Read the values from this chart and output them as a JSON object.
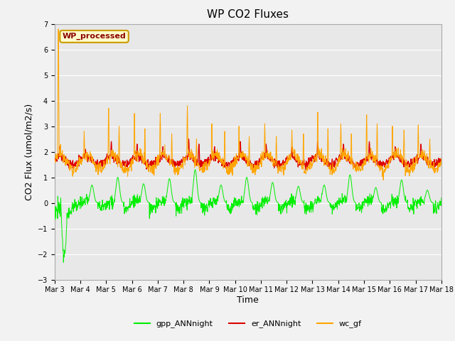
{
  "title": "WP CO2 Fluxes",
  "xlabel": "Time",
  "ylabel": "CO2 Flux (umol/m2/s)",
  "ylim": [
    -3.0,
    7.0
  ],
  "x_tick_labels": [
    "Mar 3",
    "Mar 4",
    "Mar 5",
    "Mar 6",
    "Mar 7",
    "Mar 8",
    "Mar 9",
    "Mar 10",
    "Mar 11",
    "Mar 12",
    "Mar 13",
    "Mar 14",
    "Mar 15",
    "Mar 16",
    "Mar 17",
    "Mar 18"
  ],
  "legend_labels": [
    "gpp_ANNnight",
    "er_ANNnight",
    "wc_gf"
  ],
  "legend_colors": [
    "#00ee00",
    "#dd0000",
    "#ffa500"
  ],
  "wp_label": "WP_processed",
  "wp_label_color": "#8b0000",
  "wp_box_facecolor": "#ffffcc",
  "wp_box_edgecolor": "#cc9900",
  "fig_facecolor": "#f2f2f2",
  "ax_facecolor": "#e8e8e8",
  "grid_color": "#ffffff",
  "title_fontsize": 11,
  "axis_label_fontsize": 9,
  "tick_fontsize": 7,
  "n_points": 1440,
  "gpp_color": "#00ee00",
  "er_color": "#dd0000",
  "wc_color": "#ffa500"
}
